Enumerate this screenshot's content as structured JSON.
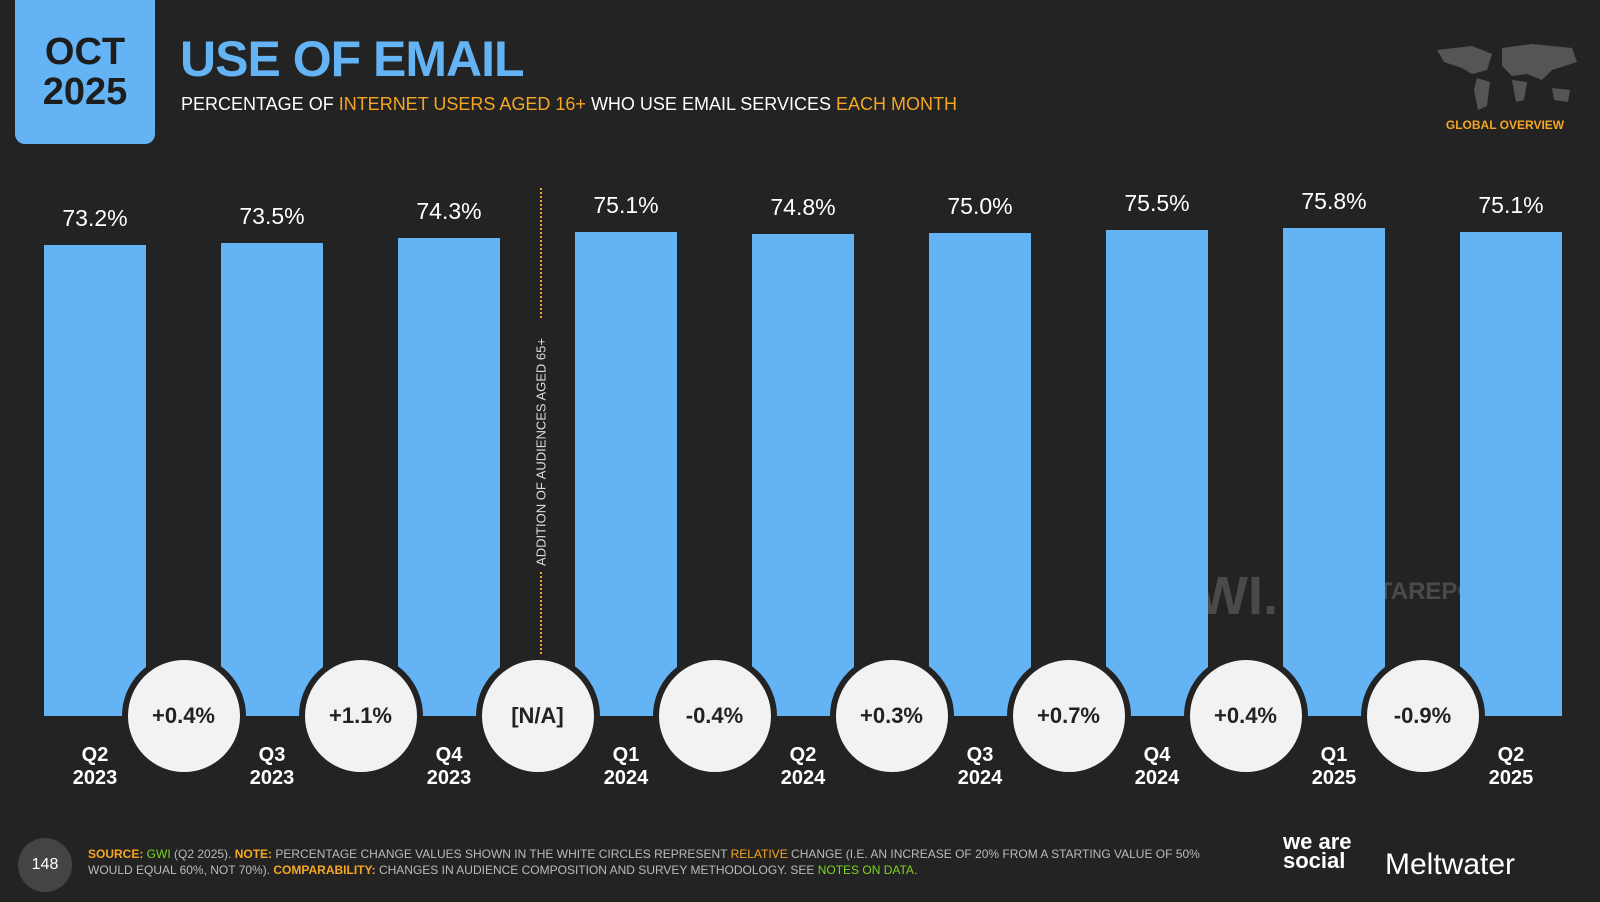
{
  "header": {
    "date": "OCT 2025",
    "title": "USE OF EMAIL",
    "subtitle": [
      {
        "text": "PERCENTAGE OF ",
        "color": "#ffffff"
      },
      {
        "text": "INTERNET USERS AGED 16+",
        "color": "#f5a623"
      },
      {
        "text": " WHO USE EMAIL SERVICES ",
        "color": "#ffffff"
      },
      {
        "text": "EACH MONTH",
        "color": "#f5a623"
      }
    ],
    "region": "GLOBAL OVERVIEW"
  },
  "chart_data": {
    "type": "bar",
    "categories": [
      "Q2 2023",
      "Q3 2023",
      "Q4 2023",
      "Q1 2024",
      "Q2 2024",
      "Q3 2024",
      "Q4 2024",
      "Q1 2025",
      "Q2 2025"
    ],
    "values": [
      73.2,
      73.5,
      74.3,
      75.1,
      74.8,
      75.0,
      75.5,
      75.8,
      75.1
    ],
    "value_labels": [
      "73.2%",
      "73.5%",
      "74.3%",
      "75.1%",
      "74.8%",
      "75.0%",
      "75.5%",
      "75.8%",
      "75.1%"
    ],
    "change_labels": [
      "+0.4%",
      "+1.1%",
      "[N/A]",
      "-0.4%",
      "+0.3%",
      "+0.7%",
      "+0.4%",
      "-0.9%"
    ],
    "annotation": "ADDITION OF AUDIENCES AGED 65+",
    "color": "#63b3f5",
    "ylim": [
      0,
      100
    ]
  },
  "watermarks": [
    "GWI.",
    "DATAREPORTAL"
  ],
  "footer": {
    "page": "148",
    "notes": [
      {
        "text": "SOURCE: ",
        "color": "#f5a623",
        "bold": true
      },
      {
        "text": "GWI",
        "color": "#7ed321",
        "bold": false
      },
      {
        "text": " (Q2 2025). ",
        "color": "#bbbbbb",
        "bold": false
      },
      {
        "text": "NOTE: ",
        "color": "#f5a623",
        "bold": true
      },
      {
        "text": "PERCENTAGE CHANGE VALUES SHOWN IN THE WHITE CIRCLES REPRESENT ",
        "color": "#bbbbbb",
        "bold": false
      },
      {
        "text": "RELATIVE",
        "color": "#f5a623",
        "bold": false
      },
      {
        "text": " CHANGE (I.E. AN INCREASE OF 20% FROM A STARTING VALUE OF 50% WOULD EQUAL 60%, NOT 70%). ",
        "color": "#bbbbbb",
        "bold": false
      },
      {
        "text": "COMPARABILITY: ",
        "color": "#f5a623",
        "bold": true
      },
      {
        "text": "CHANGES IN AUDIENCE COMPOSITION AND SURVEY METHODOLOGY. SEE ",
        "color": "#bbbbbb",
        "bold": false
      },
      {
        "text": "NOTES ON DATA",
        "color": "#7ed321",
        "bold": false
      },
      {
        "text": ".",
        "color": "#bbbbbb",
        "bold": false
      }
    ],
    "logos": [
      "we are social",
      "Meltwater"
    ]
  }
}
